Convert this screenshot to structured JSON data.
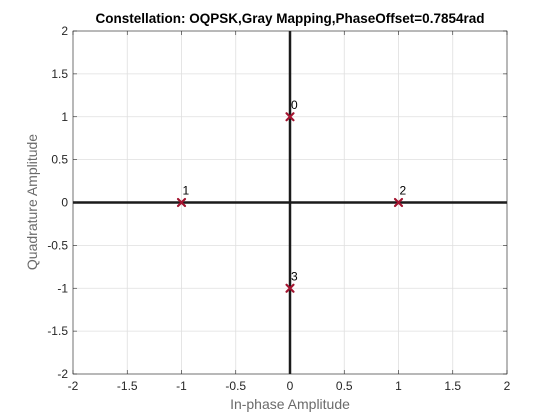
{
  "chart_data": {
    "type": "scatter",
    "title": "Constellation: OQPSK,Gray Mapping,PhaseOffset=0.7854rad",
    "xlabel": "In-phase Amplitude",
    "ylabel": "Quadrature Amplitude",
    "xlim": [
      -2,
      2
    ],
    "ylim": [
      -2,
      2
    ],
    "xticks": [
      "-2",
      "-1.5",
      "-1",
      "-0.5",
      "0",
      "0.5",
      "1",
      "1.5",
      "2"
    ],
    "yticks": [
      "-2",
      "-1.5",
      "-1",
      "-0.5",
      "0",
      "0.5",
      "1",
      "1.5",
      "2"
    ],
    "grid": true,
    "marker": "x",
    "points": [
      {
        "label": "0",
        "x": 0,
        "y": 1
      },
      {
        "label": "1",
        "x": -1,
        "y": 0
      },
      {
        "label": "2",
        "x": 1,
        "y": 0
      },
      {
        "label": "3",
        "x": 0,
        "y": -1
      }
    ],
    "colors": {
      "marker": "#a2142f",
      "axes_lines": "#1a1a1a",
      "grid": "#dfdfdf",
      "box": "#262626"
    }
  }
}
